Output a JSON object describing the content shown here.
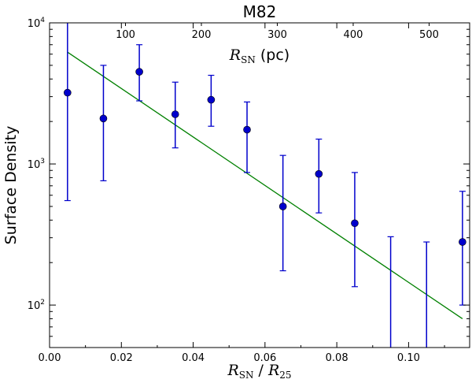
{
  "chart_data": {
    "type": "scatter",
    "title": "M82",
    "xlabel": "R_SN / R_25",
    "xlabel_parts": [
      "R",
      "SN",
      " / ",
      "R",
      "25"
    ],
    "x2label_parts": [
      "R",
      "SN",
      " (pc)"
    ],
    "ylabel": "Surface Density",
    "xlim": [
      0.0,
      0.117
    ],
    "ylim": [
      50,
      10000
    ],
    "yscale": "log",
    "x_ticks": [
      0.0,
      0.02,
      0.04,
      0.06,
      0.08,
      0.1
    ],
    "x_tick_labels": [
      "0.00",
      "0.02",
      "0.04",
      "0.06",
      "0.08",
      "0.10"
    ],
    "x2_ticks": [
      100,
      200,
      300,
      400,
      500
    ],
    "x2_tick_labels": [
      "100",
      "200",
      "300",
      "400",
      "500"
    ],
    "x2_per_x": 4730,
    "y_ticks": [
      100,
      1000,
      10000
    ],
    "y_tick_labels": [
      [
        "10",
        "2"
      ],
      [
        "10",
        "3"
      ],
      [
        "10",
        "4"
      ]
    ],
    "series": [
      {
        "marker": "circle",
        "color": "#0000cc",
        "x": [
          0.005,
          0.015,
          0.025,
          0.035,
          0.045,
          0.055,
          0.065,
          0.075,
          0.085,
          0.095,
          0.105,
          0.115
        ],
        "y": [
          3200,
          2100,
          4500,
          2250,
          2850,
          1750,
          500,
          850,
          380,
          null,
          null,
          280
        ],
        "err_low": [
          550,
          760,
          2800,
          1300,
          1850,
          870,
          175,
          450,
          135,
          40,
          40,
          100
        ],
        "err_high": [
          11000,
          5000,
          7000,
          3800,
          4250,
          2750,
          1150,
          1500,
          870,
          305,
          280,
          640
        ]
      }
    ],
    "fit_line": {
      "color": "#008000",
      "x": [
        0.005,
        0.115
      ],
      "y": [
        6200,
        80
      ]
    },
    "grid": false,
    "legend": "none"
  }
}
